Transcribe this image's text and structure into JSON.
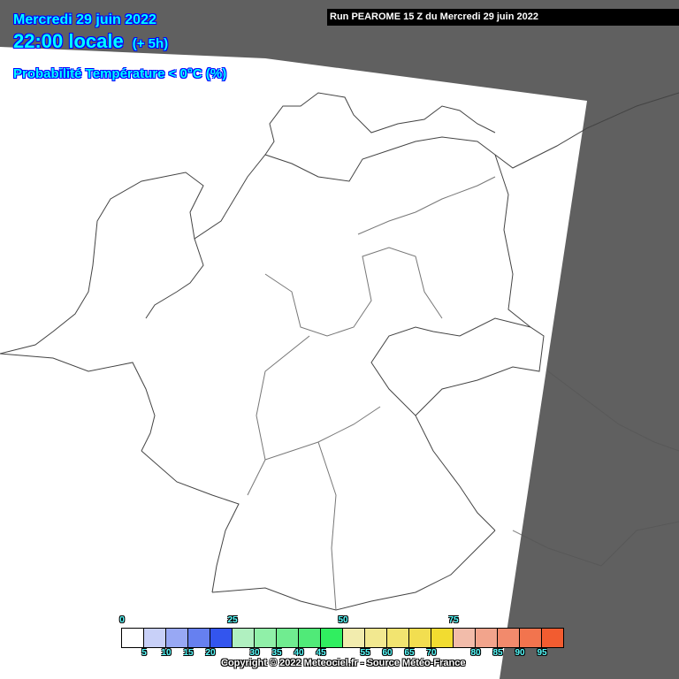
{
  "header": {
    "date": "Mercredi 29 juin 2022",
    "time": "22:00 locale",
    "offset": "(+ 5h)",
    "parameter": "Probabilité Température < 0°C (%)",
    "run": "Run PEAROME 15 Z du Mercredi 29 juin 2022"
  },
  "colors": {
    "outside_domain": "#606060",
    "domain_fill": "#ffffff",
    "title_text": "#00ffff",
    "title_outline": "#0000ff"
  },
  "legend": {
    "colors": [
      "#ffffff",
      "#c8d0f8",
      "#98a8f4",
      "#6680f0",
      "#3355ee",
      "#b0f0c0",
      "#90f0a8",
      "#70ec90",
      "#50ea78",
      "#30ee60",
      "#f2ecae",
      "#f2e890",
      "#f2e470",
      "#f2de50",
      "#f2dc30",
      "#f2bcaa",
      "#f2a48c",
      "#f28a6c",
      "#f2744e",
      "#f25c30"
    ],
    "major_labels": [
      "0",
      "25",
      "50",
      "75"
    ],
    "minor_labels": [
      "5",
      "10",
      "15",
      "20",
      "30",
      "35",
      "40",
      "45",
      "55",
      "60",
      "65",
      "70",
      "80",
      "85",
      "90",
      "95"
    ]
  },
  "copyright": "Copyright © 2022 Meteociel.fr - Source Météo-France"
}
